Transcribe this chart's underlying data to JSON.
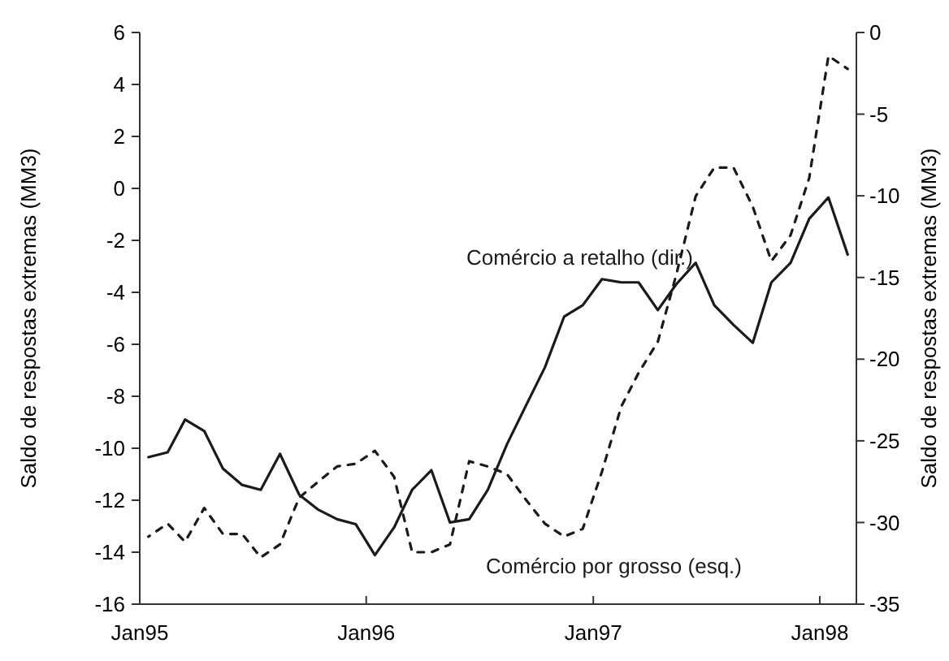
{
  "chart_data": {
    "type": "line",
    "ylabel": "Saldo de respostas extremas (MM3)",
    "y2label": "Saldo de respostas extremas (MM3)",
    "x": [
      "1995-01-15",
      "1995-02-15",
      "1995-03-15",
      "1995-04-15",
      "1995-05-15",
      "1995-06-15",
      "1995-07-15",
      "1995-08-15",
      "1995-09-15",
      "1995-10-15",
      "1995-11-15",
      "1995-12-15",
      "1996-01-15",
      "1996-02-15",
      "1996-03-15",
      "1996-04-15",
      "1996-05-15",
      "1996-06-15",
      "1996-07-15",
      "1996-08-15",
      "1996-09-15",
      "1996-10-15",
      "1996-11-15",
      "1996-12-15",
      "1997-01-15",
      "1997-02-15",
      "1997-03-15",
      "1997-04-15",
      "1997-05-15",
      "1997-06-15",
      "1997-07-15",
      "1997-08-15",
      "1997-09-15",
      "1997-10-15",
      "1997-11-15",
      "1997-12-15",
      "1998-01-15",
      "1998-02-15"
    ],
    "series": [
      {
        "name": "Comércio a retalho (dir.)",
        "color": "#1a1a1a",
        "axis": "y2",
        "line_style": "solid",
        "values": [
          -26.0,
          -25.7,
          -23.7,
          -24.4,
          -26.7,
          -27.7,
          -28.0,
          -25.8,
          -28.3,
          -29.2,
          -29.8,
          -30.1,
          -32.0,
          -30.3,
          -28.0,
          -26.8,
          -30.0,
          -29.8,
          -28.0,
          -25.2,
          -22.8,
          -20.5,
          -17.4,
          -16.7,
          -15.1,
          -15.3,
          -15.3,
          -17.0,
          -15.4,
          -14.1,
          -16.7,
          -17.9,
          -19.0,
          -15.3,
          -14.1,
          -11.4,
          -10.1,
          -13.6
        ]
      },
      {
        "name": "Comércio por grosso (esq.)",
        "color": "#1a1a1a",
        "line_style": "dashed",
        "values": [
          -13.4,
          -12.9,
          -13.6,
          -12.3,
          -13.3,
          -13.3,
          -14.2,
          -13.7,
          -11.9,
          -11.3,
          -10.7,
          -10.6,
          -10.1,
          -11.1,
          -14.0,
          -14.0,
          -13.7,
          -10.5,
          -10.7,
          -11.0,
          -12.0,
          -12.9,
          -13.4,
          -13.1,
          -10.9,
          -8.4,
          -7.1,
          -5.9,
          -3.3,
          -0.3,
          0.8,
          0.8,
          -0.7,
          -2.8,
          -1.8,
          0.4,
          5.1,
          4.6
        ]
      }
    ],
    "xlim": [
      "1995-01-01",
      "1998-03-01"
    ],
    "xticks": [
      {
        "value": "1995-01-01",
        "label": "Jan95"
      },
      {
        "value": "1996-01-01",
        "label": "Jan96"
      },
      {
        "value": "1997-01-01",
        "label": "Jan97"
      },
      {
        "value": "1998-01-01",
        "label": "Jan98"
      }
    ],
    "ylim": [
      -16,
      6
    ],
    "yticks": [
      -16,
      -14,
      -12,
      -10,
      -8,
      -6,
      -4,
      -2,
      0,
      2,
      4,
      6
    ],
    "y2lim": [
      -35,
      0
    ],
    "y2ticks": [
      -35,
      -30,
      -25,
      -20,
      -15,
      -10,
      -5,
      0
    ],
    "grid": false
  }
}
